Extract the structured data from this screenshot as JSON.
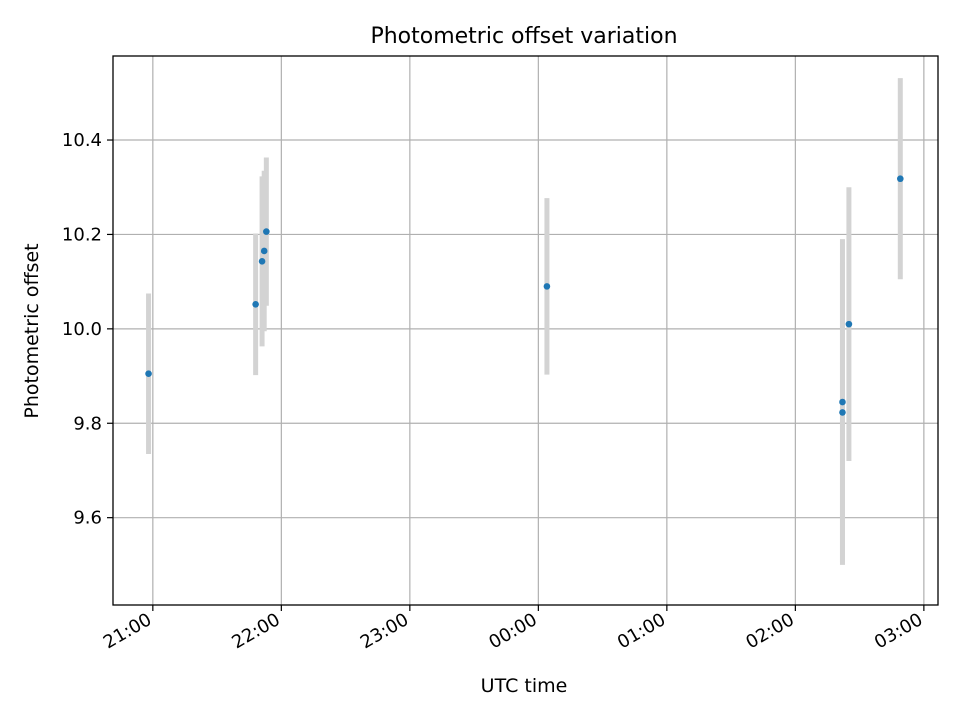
{
  "chart_data": {
    "type": "scatter",
    "title": "Photometric offset variation",
    "xlabel": "UTC time",
    "ylabel": "Photometric offset",
    "x_ticks": [
      "21:00",
      "22:00",
      "23:00",
      "00:00",
      "01:00",
      "02:00",
      "03:00"
    ],
    "y_ticks": [
      "9.6",
      "9.8",
      "10.0",
      "10.2",
      "10.4"
    ],
    "y_tick_values": [
      9.6,
      9.8,
      10.0,
      10.2,
      10.4
    ],
    "xlim_hours_after_21": [
      -0.31,
      6.11
    ],
    "ylim": [
      9.415,
      10.578
    ],
    "grid": true,
    "error_bar_color": "#d3d3d3",
    "marker_color": "#1f77b4",
    "points": [
      {
        "time": "20:58",
        "y": 9.905,
        "err": 0.17
      },
      {
        "time": "21:48",
        "y": 10.052,
        "err": 0.15
      },
      {
        "time": "21:51",
        "y": 10.143,
        "err": 0.18
      },
      {
        "time": "21:52",
        "y": 10.165,
        "err": 0.17
      },
      {
        "time": "21:53",
        "y": 10.206,
        "err": 0.157
      },
      {
        "time": "00:04",
        "y": 10.09,
        "err": 0.187
      },
      {
        "time": "02:22",
        "y": 9.823,
        "err": 0.318
      },
      {
        "time": "02:22",
        "y": 9.845,
        "err": 0.345
      },
      {
        "time": "02:25",
        "y": 10.01,
        "err": 0.29
      },
      {
        "time": "02:49",
        "y": 10.318,
        "err": 0.213
      }
    ]
  }
}
